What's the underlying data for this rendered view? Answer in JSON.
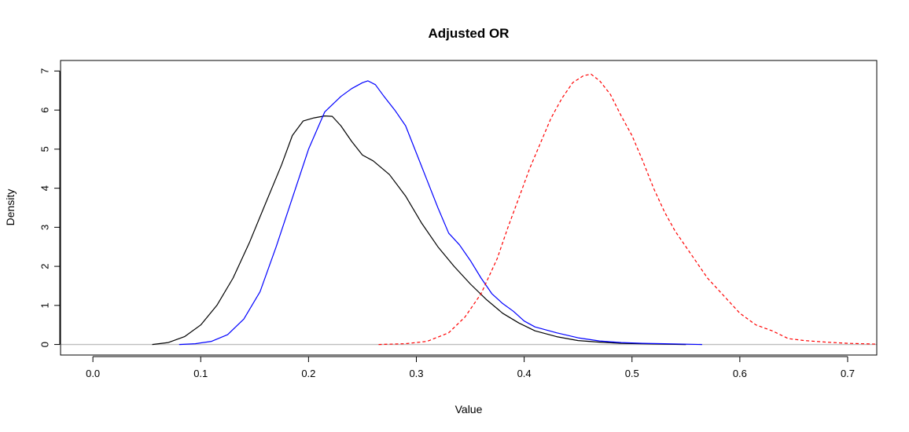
{
  "chart_data": {
    "type": "line",
    "title": "Adjusted OR",
    "xlabel": "Value",
    "ylabel": "Density",
    "xlim": [
      -0.03,
      0.727
    ],
    "ylim": [
      -0.27,
      7.27
    ],
    "x_ticks": [
      0.0,
      0.1,
      0.2,
      0.3,
      0.4,
      0.5,
      0.6,
      0.7
    ],
    "y_ticks": [
      0,
      1,
      2,
      3,
      4,
      5,
      6,
      7
    ],
    "x_tick_labels": [
      "0.0",
      "0.1",
      "0.2",
      "0.3",
      "0.4",
      "0.5",
      "0.6",
      "0.7"
    ],
    "y_tick_labels": [
      "0",
      "1",
      "2",
      "3",
      "4",
      "5",
      "6",
      "7"
    ],
    "grid": false,
    "reference_line": {
      "y": 0,
      "color": "#bebebe"
    },
    "series": [
      {
        "color": "#000000",
        "style": "solid",
        "x": [
          0.055,
          0.07,
          0.085,
          0.1,
          0.115,
          0.13,
          0.145,
          0.16,
          0.175,
          0.185,
          0.195,
          0.205,
          0.215,
          0.222,
          0.23,
          0.24,
          0.25,
          0.26,
          0.275,
          0.29,
          0.305,
          0.32,
          0.335,
          0.35,
          0.365,
          0.38,
          0.395,
          0.41,
          0.43,
          0.45,
          0.47,
          0.49,
          0.51,
          0.53,
          0.55
        ],
        "y": [
          0.0,
          0.05,
          0.2,
          0.5,
          1.0,
          1.7,
          2.6,
          3.6,
          4.6,
          5.35,
          5.72,
          5.8,
          5.85,
          5.84,
          5.6,
          5.2,
          4.85,
          4.7,
          4.35,
          3.8,
          3.1,
          2.5,
          2.0,
          1.55,
          1.15,
          0.8,
          0.55,
          0.35,
          0.2,
          0.1,
          0.06,
          0.03,
          0.02,
          0.01,
          0.0
        ]
      },
      {
        "color": "#0000ff",
        "style": "solid",
        "x": [
          0.08,
          0.095,
          0.11,
          0.125,
          0.14,
          0.155,
          0.17,
          0.185,
          0.2,
          0.215,
          0.23,
          0.24,
          0.25,
          0.255,
          0.262,
          0.27,
          0.28,
          0.29,
          0.3,
          0.31,
          0.32,
          0.33,
          0.34,
          0.35,
          0.36,
          0.37,
          0.38,
          0.39,
          0.4,
          0.41,
          0.43,
          0.45,
          0.47,
          0.49,
          0.51,
          0.53,
          0.565
        ],
        "y": [
          0.0,
          0.02,
          0.08,
          0.25,
          0.65,
          1.35,
          2.5,
          3.75,
          5.0,
          5.95,
          6.35,
          6.55,
          6.7,
          6.75,
          6.65,
          6.35,
          6.0,
          5.6,
          4.9,
          4.2,
          3.5,
          2.85,
          2.55,
          2.15,
          1.7,
          1.3,
          1.05,
          0.85,
          0.6,
          0.45,
          0.3,
          0.17,
          0.09,
          0.05,
          0.03,
          0.02,
          0.0
        ]
      },
      {
        "color": "#ff0000",
        "style": "dashed",
        "x": [
          0.265,
          0.29,
          0.31,
          0.33,
          0.345,
          0.36,
          0.375,
          0.385,
          0.395,
          0.405,
          0.415,
          0.425,
          0.435,
          0.445,
          0.455,
          0.462,
          0.47,
          0.48,
          0.49,
          0.5,
          0.51,
          0.52,
          0.53,
          0.54,
          0.555,
          0.57,
          0.585,
          0.6,
          0.615,
          0.63,
          0.645,
          0.66,
          0.68,
          0.7,
          0.727
        ],
        "y": [
          0.0,
          0.02,
          0.08,
          0.3,
          0.7,
          1.3,
          2.2,
          3.0,
          3.75,
          4.5,
          5.15,
          5.8,
          6.3,
          6.7,
          6.88,
          6.92,
          6.75,
          6.4,
          5.85,
          5.35,
          4.7,
          4.0,
          3.4,
          2.9,
          2.3,
          1.7,
          1.25,
          0.8,
          0.5,
          0.35,
          0.15,
          0.1,
          0.06,
          0.03,
          0.01
        ]
      }
    ]
  }
}
